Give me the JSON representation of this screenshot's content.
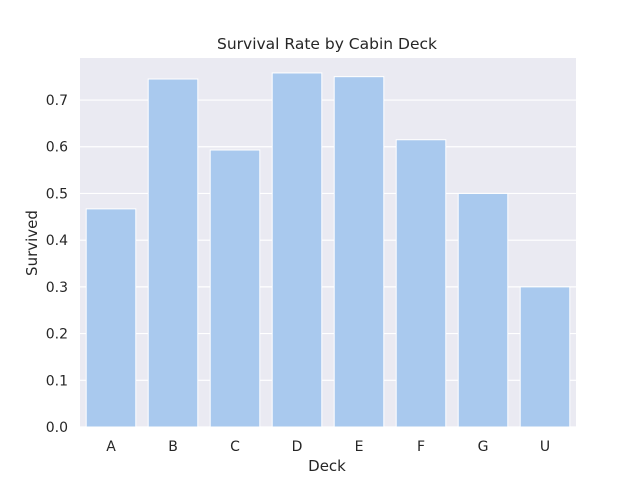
{
  "chart_data": {
    "type": "bar",
    "title": "Survival Rate by Cabin Deck",
    "xlabel": "Deck",
    "ylabel": "Survived",
    "categories": [
      "A",
      "B",
      "C",
      "D",
      "E",
      "F",
      "G",
      "U"
    ],
    "values": [
      0.467,
      0.745,
      0.593,
      0.758,
      0.75,
      0.615,
      0.5,
      0.3
    ],
    "ylim": [
      0,
      0.79
    ],
    "yticks": [
      "0.0",
      "0.1",
      "0.2",
      "0.3",
      "0.4",
      "0.5",
      "0.6",
      "0.7"
    ],
    "grid": true,
    "colors": {
      "bar": "#a9c9ee",
      "background": "#eaeaf2",
      "grid": "#ffffff"
    }
  }
}
